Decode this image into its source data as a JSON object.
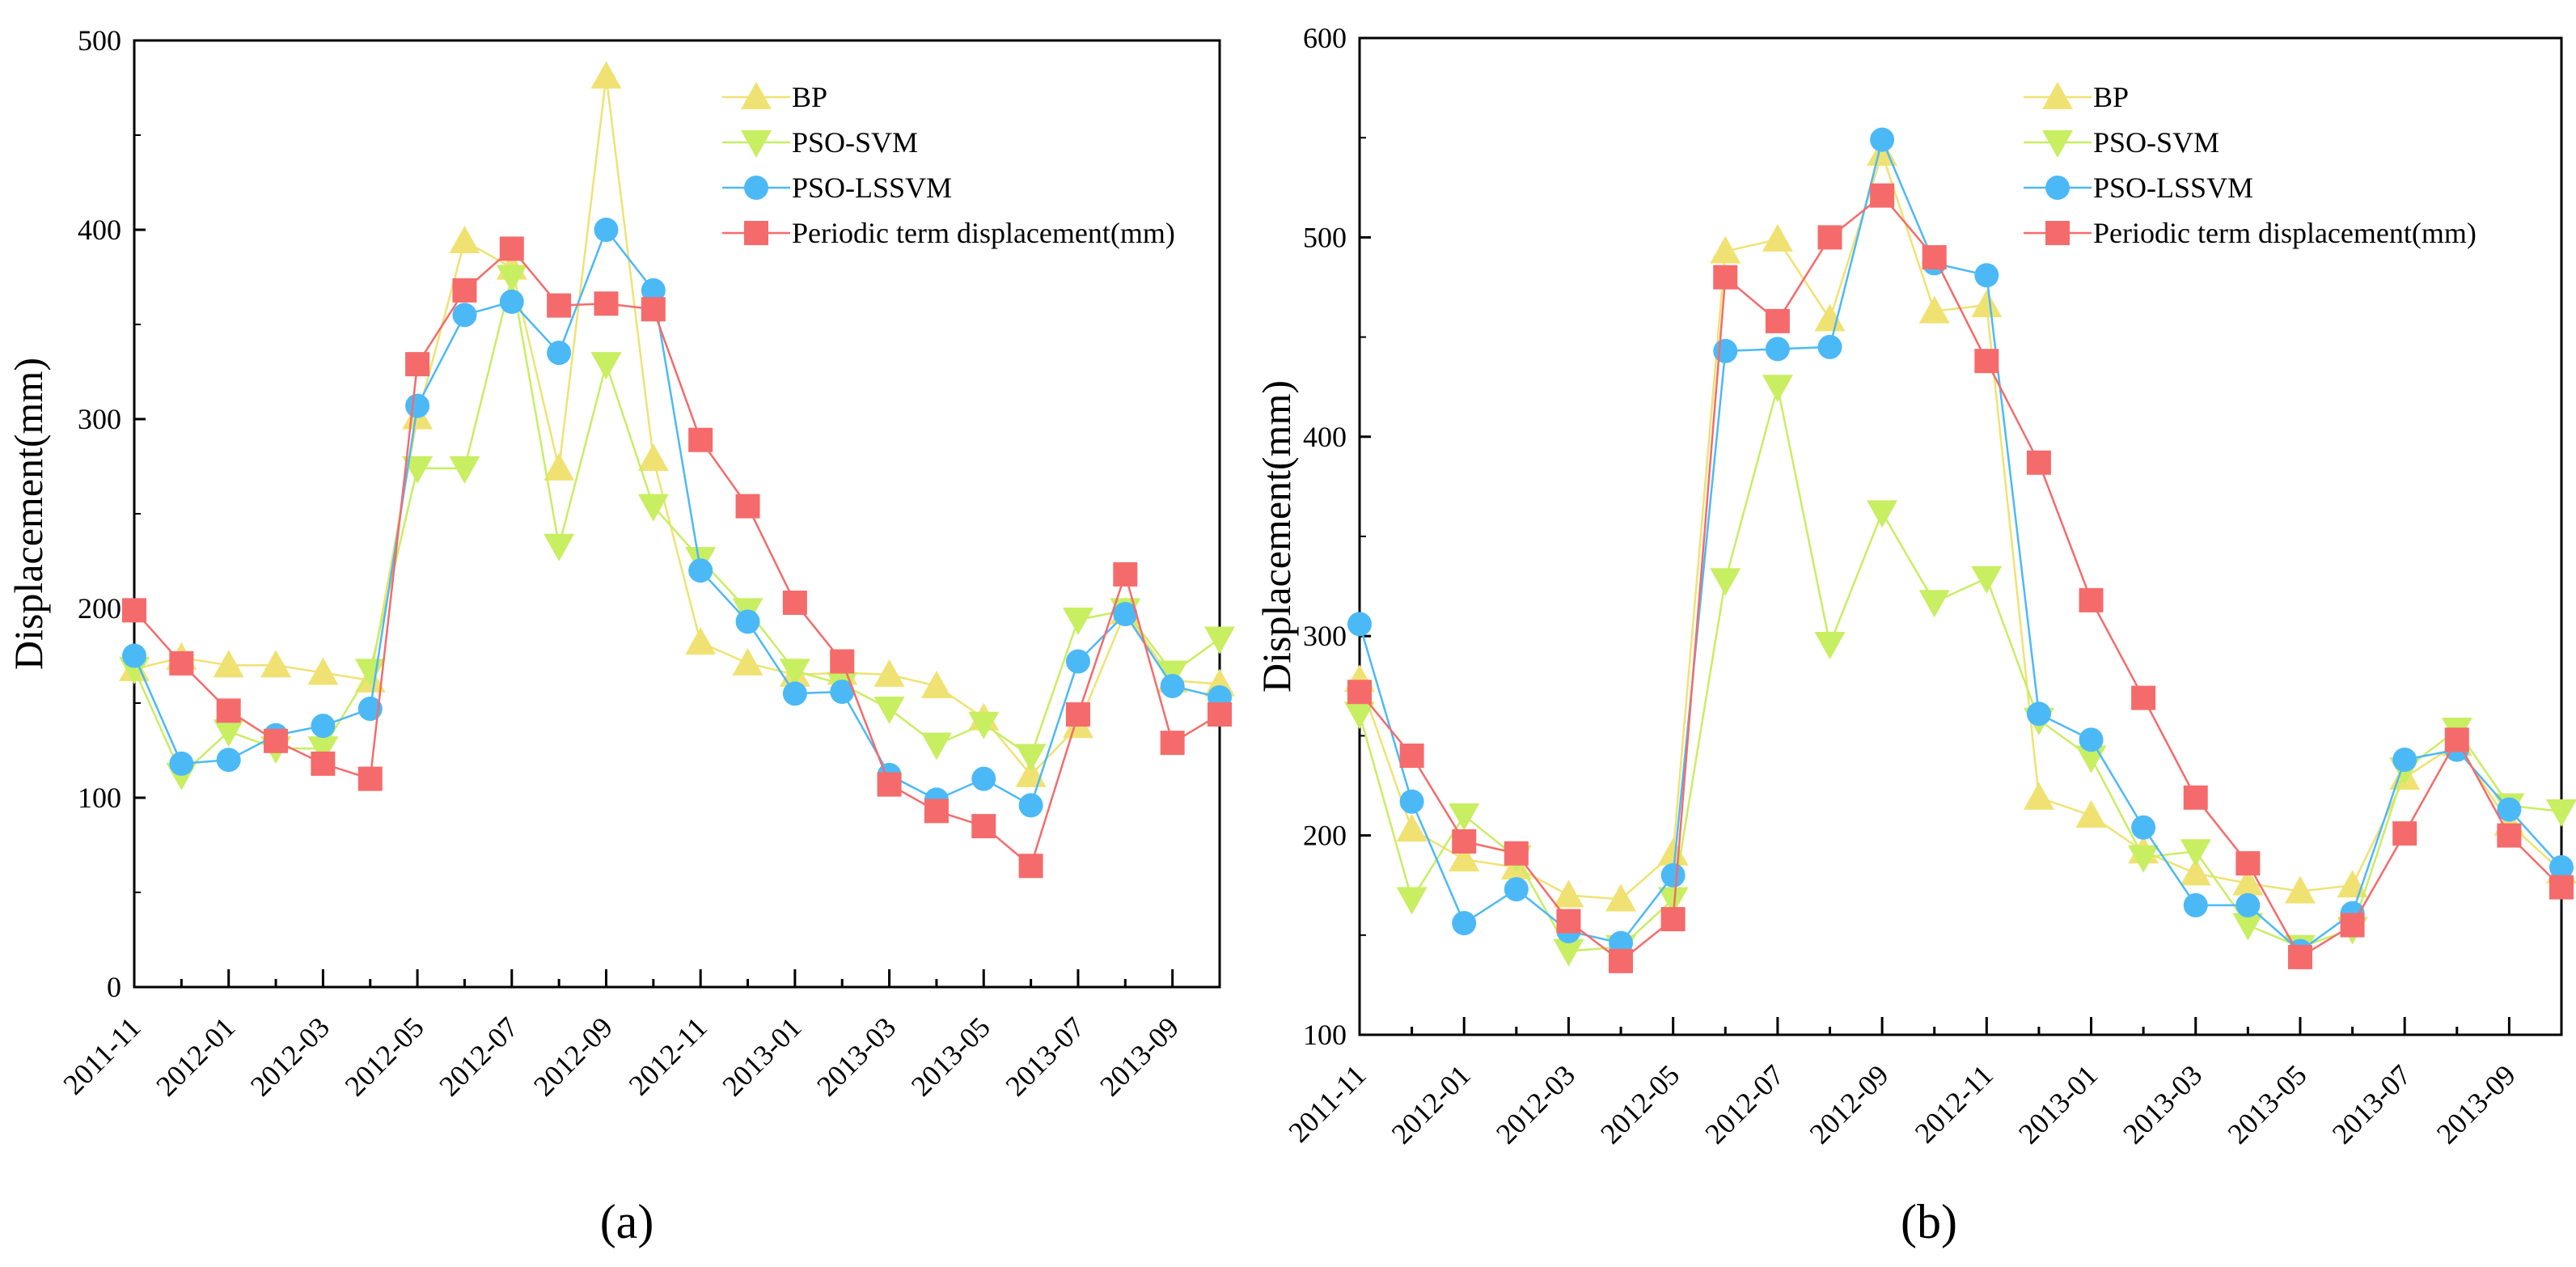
{
  "colors": {
    "BP": "#f0e272",
    "PSO-SVM": "#c8ee62",
    "PSO-LSSVM": "#4cb9f7",
    "Periodic term displacement(mm)": "#f56b6b"
  },
  "chart_data": [
    {
      "type": "line",
      "caption": "(a)",
      "ylabel": "Displacement(mm)",
      "xlabel": "",
      "ylim": [
        0,
        500
      ],
      "yticks": [
        0,
        100,
        200,
        300,
        400,
        500
      ],
      "x": [
        "2011-11",
        "2011-12",
        "2012-01",
        "2012-02",
        "2012-03",
        "2012-04",
        "2012-05",
        "2012-06",
        "2012-07",
        "2012-08",
        "2012-09",
        "2012-10",
        "2012-11",
        "2012-12",
        "2013-01",
        "2013-02",
        "2013-03",
        "2013-04",
        "2013-05",
        "2013-06",
        "2013-07",
        "2013-08",
        "2013-09",
        "2013-10"
      ],
      "xtick_labels": [
        "2011-11",
        "2012-01",
        "2012-03",
        "2012-05",
        "2012-07",
        "2012-09",
        "2012-11",
        "2013-01",
        "2013-03",
        "2013-05",
        "2013-07",
        "2013-09"
      ],
      "legend": "top-right",
      "series": [
        {
          "name": "BP",
          "marker": "triangle-up",
          "values": [
            168,
            174,
            170,
            170,
            166,
            162,
            301,
            394,
            380,
            274,
            481,
            279,
            182,
            171,
            165,
            166,
            165,
            159,
            142,
            112,
            138,
            198,
            162,
            160
          ]
        },
        {
          "name": "PSO-SVM",
          "marker": "triangle-down",
          "values": [
            168,
            112,
            135,
            126,
            126,
            167,
            274,
            274,
            375,
            233,
            329,
            254,
            226,
            199,
            167,
            160,
            147,
            128,
            139,
            122,
            194,
            199,
            166,
            184
          ]
        },
        {
          "name": "PSO-LSSVM",
          "marker": "circle",
          "values": [
            175,
            118,
            120,
            133,
            138,
            147,
            307,
            355,
            362,
            335,
            400,
            368,
            220,
            193,
            155,
            156,
            112,
            99,
            110,
            96,
            172,
            197,
            159,
            153
          ]
        },
        {
          "name": "Periodic term displacement(mm)",
          "marker": "square",
          "values": [
            199,
            171,
            146,
            130,
            118,
            110,
            329,
            368,
            390,
            360,
            361,
            358,
            289,
            254,
            203,
            172,
            107,
            93,
            85,
            64,
            144,
            218,
            129,
            144
          ]
        }
      ]
    },
    {
      "type": "line",
      "caption": "(b)",
      "ylabel": "Displacement(mm)",
      "xlabel": "",
      "ylim": [
        100,
        600
      ],
      "yticks": [
        100,
        200,
        300,
        400,
        500,
        600
      ],
      "x": [
        "2011-11",
        "2011-12",
        "2012-01",
        "2012-02",
        "2012-03",
        "2012-04",
        "2012-05",
        "2012-06",
        "2012-07",
        "2012-08",
        "2012-09",
        "2012-10",
        "2012-11",
        "2012-12",
        "2013-01",
        "2013-02",
        "2013-03",
        "2013-04",
        "2013-05",
        "2013-06",
        "2013-07",
        "2013-08",
        "2013-09",
        "2013-10"
      ],
      "xtick_labels": [
        "2011-11",
        "2012-01",
        "2012-03",
        "2012-05",
        "2012-07",
        "2012-09",
        "2012-11",
        "2013-01",
        "2013-03",
        "2013-05",
        "2013-07",
        "2013-09"
      ],
      "legend": "top-right",
      "series": [
        {
          "name": "BP",
          "marker": "triangle-up",
          "values": [
            278,
            203,
            188,
            184,
            170,
            168,
            191,
            493,
            499,
            459,
            542,
            463,
            466,
            219,
            210,
            192,
            181,
            176,
            172,
            175,
            229,
            246,
            206,
            182
          ]
        },
        {
          "name": "PSO-SVM",
          "marker": "triangle-down",
          "values": [
            261,
            168,
            210,
            189,
            142,
            144,
            168,
            328,
            425,
            296,
            362,
            317,
            329,
            258,
            239,
            189,
            192,
            155,
            144,
            153,
            233,
            253,
            215,
            212
          ]
        },
        {
          "name": "PSO-LSSVM",
          "marker": "circle",
          "values": [
            306,
            217,
            156,
            173,
            152,
            146,
            180,
            443,
            444,
            445,
            549,
            487,
            481,
            261,
            248,
            204,
            165,
            165,
            142,
            161,
            238,
            243,
            213,
            184
          ]
        },
        {
          "name": "Periodic term displacement(mm)",
          "marker": "square",
          "values": [
            272,
            240,
            197,
            191,
            157,
            137,
            158,
            480,
            458,
            500,
            521,
            490,
            438,
            387,
            318,
            269,
            219,
            186,
            139,
            155,
            201,
            248,
            200,
            174
          ]
        }
      ]
    }
  ]
}
